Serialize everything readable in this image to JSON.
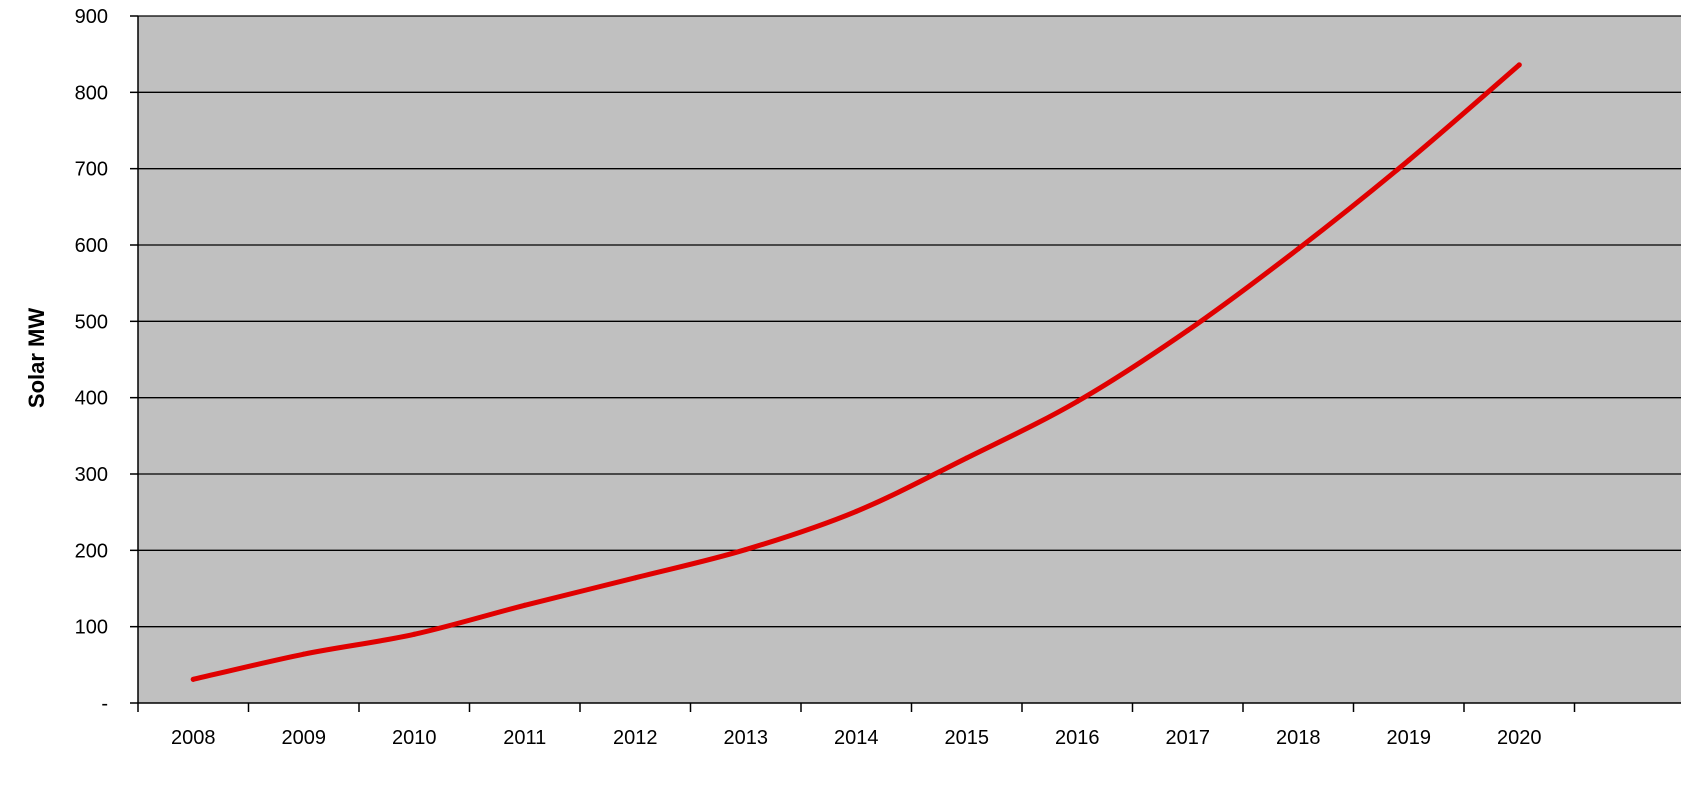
{
  "chart_data": {
    "type": "line",
    "title": "",
    "xlabel": "",
    "ylabel": "Solar MW",
    "x": [
      "2008",
      "2009",
      "2010",
      "2011",
      "2012",
      "2013",
      "2014",
      "2015",
      "2016",
      "2017",
      "2018",
      "2019",
      "2020"
    ],
    "series": [
      {
        "values": [
          31,
          64,
          90,
          128,
          164,
          201,
          251,
          321,
          395,
          488,
          595,
          711,
          836
        ]
      }
    ],
    "ylim": [
      0,
      900
    ],
    "y_ticks": [
      0,
      100,
      200,
      300,
      400,
      500,
      600,
      700,
      800,
      900
    ],
    "y_tick_labels": [
      "-",
      "100",
      "200",
      "300",
      "400",
      "500",
      "600",
      "700",
      "800",
      "900"
    ],
    "grid": true,
    "legend": "none",
    "colors": {
      "plot_background": "#c0c0c0",
      "line": "#e00000",
      "gridline": "#000000",
      "page_background": "#ffffff"
    }
  }
}
